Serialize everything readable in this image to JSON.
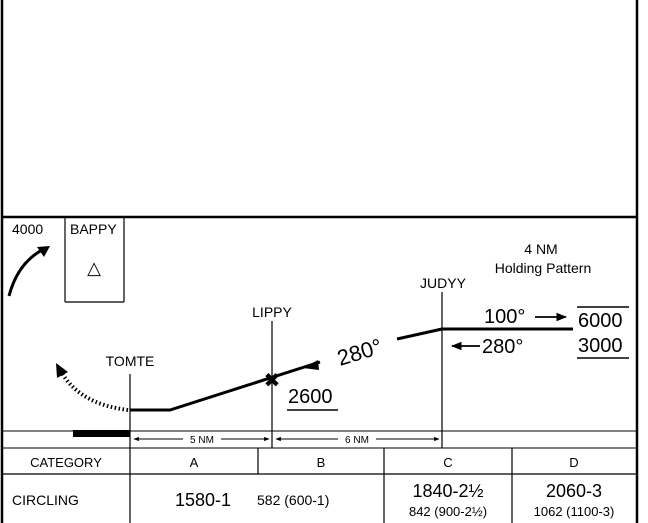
{
  "profile": {
    "missed_approach_box": {
      "altitude": "4000",
      "fix_name": "BAPPY",
      "fix_symbol": "△"
    },
    "holding_note": {
      "line1": "4 NM",
      "line2": "Holding Pattern"
    },
    "fixes": {
      "judyy": "JUDYY",
      "lippy": "LIPPY",
      "tomte": "TOMTE"
    },
    "holding": {
      "outbound_course": "100°",
      "inbound_course": "280°",
      "max_altitude": "6000",
      "min_altitude": "3000"
    },
    "final_course": "280°",
    "lippy_altitude": "2600",
    "lippy_symbol": "✖",
    "distances": {
      "tomte_to_lippy": "5 NM",
      "lippy_to_judyy": "6 NM"
    }
  },
  "minimums": {
    "header_label": "CATEGORY",
    "categories": [
      "A",
      "B",
      "C",
      "D"
    ],
    "row_label": "CIRCLING",
    "ab": {
      "main": "1580-1",
      "sub": "582 (600-1)"
    },
    "c": {
      "main": "1840-2½",
      "sub": "842 (900-2½)"
    },
    "d": {
      "main": "2060-3",
      "sub": "1062 (1100-3)"
    }
  }
}
